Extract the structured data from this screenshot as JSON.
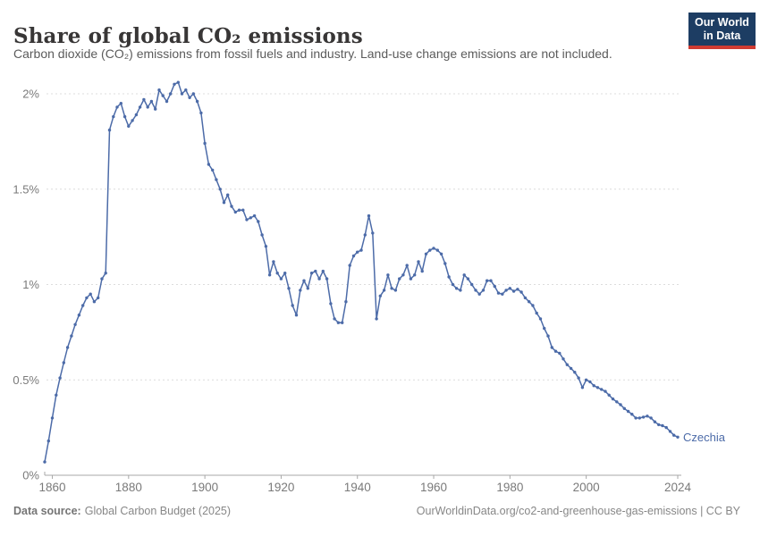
{
  "header": {
    "title": "Share of global CO₂ emissions",
    "subtitle": "Carbon dioxide (CO₂) emissions from fossil fuels and industry. Land-use change emissions are not included."
  },
  "logo": {
    "line1": "Our World",
    "line2": "in Data",
    "bg_color": "#1d3d63",
    "bar_color": "#cf3b32"
  },
  "footer": {
    "source_label": "Data source:",
    "source_text": "Global Carbon Budget (2025)",
    "right_text": "OurWorldinData.org/co2-and-greenhouse-gas-emissions | CC BY"
  },
  "chart_data": {
    "type": "line",
    "title": "Share of global CO₂ emissions",
    "xlabel": "",
    "ylabel": "",
    "xlim": [
      1858,
      2024
    ],
    "ylim": [
      0,
      2.1
    ],
    "grid": "horizontal-dashed",
    "legend_position": "end-of-line-label",
    "x_ticks": [
      1860,
      1880,
      1900,
      1920,
      1940,
      1960,
      1980,
      2000,
      2024
    ],
    "y_ticks": [
      {
        "value": 0,
        "label": "0%"
      },
      {
        "value": 0.5,
        "label": "0.5%"
      },
      {
        "value": 1,
        "label": "1%"
      },
      {
        "value": 1.5,
        "label": "1.5%"
      },
      {
        "value": 2,
        "label": "2%"
      }
    ],
    "series": [
      {
        "name": "Czechia",
        "color": "#4c6ba8",
        "unit": "%",
        "points": [
          [
            1858,
            0.07
          ],
          [
            1859,
            0.18
          ],
          [
            1860,
            0.3
          ],
          [
            1861,
            0.42
          ],
          [
            1862,
            0.51
          ],
          [
            1863,
            0.59
          ],
          [
            1864,
            0.67
          ],
          [
            1865,
            0.73
          ],
          [
            1866,
            0.79
          ],
          [
            1867,
            0.84
          ],
          [
            1868,
            0.89
          ],
          [
            1869,
            0.93
          ],
          [
            1870,
            0.95
          ],
          [
            1871,
            0.91
          ],
          [
            1872,
            0.93
          ],
          [
            1873,
            1.03
          ],
          [
            1874,
            1.06
          ],
          [
            1875,
            1.81
          ],
          [
            1876,
            1.88
          ],
          [
            1877,
            1.93
          ],
          [
            1878,
            1.95
          ],
          [
            1879,
            1.88
          ],
          [
            1880,
            1.83
          ],
          [
            1881,
            1.86
          ],
          [
            1882,
            1.89
          ],
          [
            1883,
            1.93
          ],
          [
            1884,
            1.97
          ],
          [
            1885,
            1.93
          ],
          [
            1886,
            1.96
          ],
          [
            1887,
            1.92
          ],
          [
            1888,
            2.02
          ],
          [
            1889,
            1.99
          ],
          [
            1890,
            1.96
          ],
          [
            1891,
            2.0
          ],
          [
            1892,
            2.05
          ],
          [
            1893,
            2.06
          ],
          [
            1894,
            2.0
          ],
          [
            1895,
            2.02
          ],
          [
            1896,
            1.98
          ],
          [
            1897,
            2.0
          ],
          [
            1898,
            1.96
          ],
          [
            1899,
            1.9
          ],
          [
            1900,
            1.74
          ],
          [
            1901,
            1.63
          ],
          [
            1902,
            1.6
          ],
          [
            1903,
            1.55
          ],
          [
            1904,
            1.5
          ],
          [
            1905,
            1.43
          ],
          [
            1906,
            1.47
          ],
          [
            1907,
            1.41
          ],
          [
            1908,
            1.38
          ],
          [
            1909,
            1.39
          ],
          [
            1910,
            1.39
          ],
          [
            1911,
            1.34
          ],
          [
            1912,
            1.35
          ],
          [
            1913,
            1.36
          ],
          [
            1914,
            1.33
          ],
          [
            1915,
            1.26
          ],
          [
            1916,
            1.2
          ],
          [
            1917,
            1.05
          ],
          [
            1918,
            1.12
          ],
          [
            1919,
            1.06
          ],
          [
            1920,
            1.03
          ],
          [
            1921,
            1.06
          ],
          [
            1922,
            0.98
          ],
          [
            1923,
            0.89
          ],
          [
            1924,
            0.84
          ],
          [
            1925,
            0.97
          ],
          [
            1926,
            1.02
          ],
          [
            1927,
            0.98
          ],
          [
            1928,
            1.06
          ],
          [
            1929,
            1.07
          ],
          [
            1930,
            1.03
          ],
          [
            1931,
            1.07
          ],
          [
            1932,
            1.03
          ],
          [
            1933,
            0.9
          ],
          [
            1934,
            0.82
          ],
          [
            1935,
            0.8
          ],
          [
            1936,
            0.8
          ],
          [
            1937,
            0.91
          ],
          [
            1938,
            1.1
          ],
          [
            1939,
            1.15
          ],
          [
            1940,
            1.17
          ],
          [
            1941,
            1.18
          ],
          [
            1942,
            1.26
          ],
          [
            1943,
            1.36
          ],
          [
            1944,
            1.27
          ],
          [
            1945,
            0.82
          ],
          [
            1946,
            0.94
          ],
          [
            1947,
            0.97
          ],
          [
            1948,
            1.05
          ],
          [
            1949,
            0.98
          ],
          [
            1950,
            0.97
          ],
          [
            1951,
            1.03
          ],
          [
            1952,
            1.05
          ],
          [
            1953,
            1.1
          ],
          [
            1954,
            1.03
          ],
          [
            1955,
            1.05
          ],
          [
            1956,
            1.12
          ],
          [
            1957,
            1.07
          ],
          [
            1958,
            1.16
          ],
          [
            1959,
            1.18
          ],
          [
            1960,
            1.19
          ],
          [
            1961,
            1.18
          ],
          [
            1962,
            1.16
          ],
          [
            1963,
            1.11
          ],
          [
            1964,
            1.04
          ],
          [
            1965,
            1.0
          ],
          [
            1966,
            0.98
          ],
          [
            1967,
            0.97
          ],
          [
            1968,
            1.05
          ],
          [
            1969,
            1.03
          ],
          [
            1970,
            1.0
          ],
          [
            1971,
            0.97
          ],
          [
            1972,
            0.95
          ],
          [
            1973,
            0.97
          ],
          [
            1974,
            1.02
          ],
          [
            1975,
            1.02
          ],
          [
            1976,
            0.99
          ],
          [
            1977,
            0.955
          ],
          [
            1978,
            0.95
          ],
          [
            1979,
            0.97
          ],
          [
            1980,
            0.98
          ],
          [
            1981,
            0.965
          ],
          [
            1982,
            0.975
          ],
          [
            1983,
            0.96
          ],
          [
            1984,
            0.93
          ],
          [
            1985,
            0.91
          ],
          [
            1986,
            0.89
          ],
          [
            1987,
            0.85
          ],
          [
            1988,
            0.82
          ],
          [
            1989,
            0.77
          ],
          [
            1990,
            0.73
          ],
          [
            1991,
            0.67
          ],
          [
            1992,
            0.65
          ],
          [
            1993,
            0.64
          ],
          [
            1994,
            0.61
          ],
          [
            1995,
            0.58
          ],
          [
            1996,
            0.56
          ],
          [
            1997,
            0.54
          ],
          [
            1998,
            0.51
          ],
          [
            1999,
            0.46
          ],
          [
            2000,
            0.5
          ],
          [
            2001,
            0.49
          ],
          [
            2002,
            0.47
          ],
          [
            2003,
            0.46
          ],
          [
            2004,
            0.45
          ],
          [
            2005,
            0.44
          ],
          [
            2006,
            0.42
          ],
          [
            2007,
            0.4
          ],
          [
            2008,
            0.385
          ],
          [
            2009,
            0.37
          ],
          [
            2010,
            0.35
          ],
          [
            2011,
            0.335
          ],
          [
            2012,
            0.32
          ],
          [
            2013,
            0.3
          ],
          [
            2014,
            0.3
          ],
          [
            2015,
            0.305
          ],
          [
            2016,
            0.31
          ],
          [
            2017,
            0.3
          ],
          [
            2018,
            0.28
          ],
          [
            2019,
            0.265
          ],
          [
            2020,
            0.26
          ],
          [
            2021,
            0.25
          ],
          [
            2022,
            0.23
          ],
          [
            2023,
            0.21
          ],
          [
            2024,
            0.2
          ]
        ]
      }
    ],
    "colors": {
      "gridline": "#dcdcdc",
      "axis": "#a7a7a7",
      "tick_label": "#7a7a7a"
    }
  }
}
